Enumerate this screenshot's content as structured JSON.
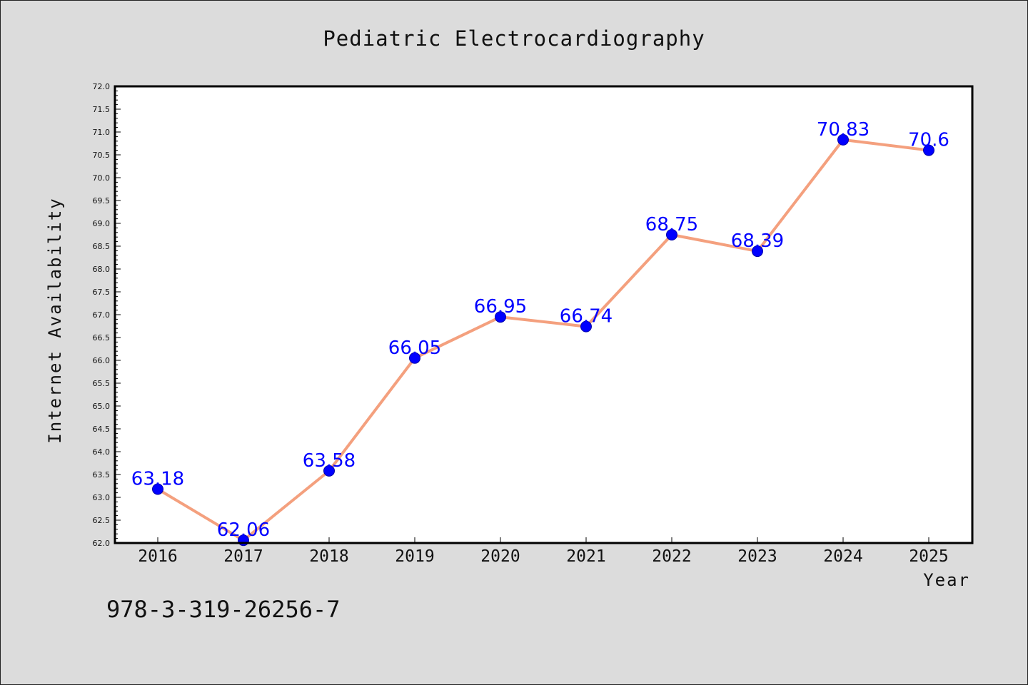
{
  "chart_data": {
    "type": "line",
    "title": "Pediatric Electrocardiography",
    "xlabel": "Year",
    "ylabel": "Internet Availability",
    "categories": [
      "2016",
      "2017",
      "2018",
      "2019",
      "2020",
      "2021",
      "2022",
      "2023",
      "2024",
      "2025"
    ],
    "series": [
      {
        "values": [
          63.18,
          62.06,
          63.58,
          66.05,
          66.95,
          66.74,
          68.75,
          68.39,
          70.83,
          70.6
        ],
        "line_color": "#f4a07e",
        "marker_color": "#0000ff"
      }
    ],
    "ylim": [
      62.0,
      72.0
    ],
    "ytick_step": 0.5,
    "grid": false,
    "data_labels": true,
    "data_label_color": "#0000ff"
  },
  "footer": {
    "text": "978-3-319-26256-7"
  }
}
